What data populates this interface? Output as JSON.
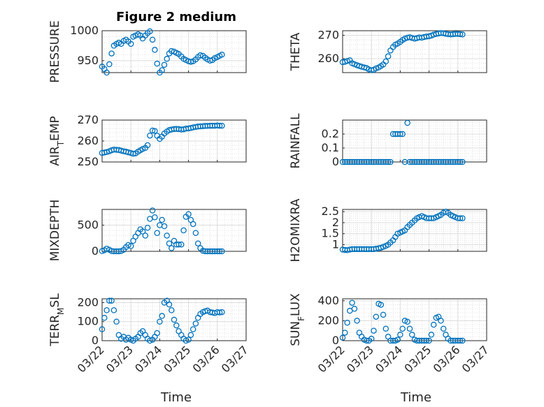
{
  "figure": {
    "title": "Figure 2 medium",
    "xlabel": "Time",
    "marker_color": "#0072BD"
  },
  "chart_data": [
    {
      "type": "scatter",
      "ylabel": "PRESSURE",
      "xlim": [
        "03/22",
        "03/27"
      ],
      "ylim": [
        930,
        1000
      ],
      "yticks": [
        950,
        1000
      ],
      "xticks": [
        "03/22",
        "03/23",
        "03/24",
        "03/25",
        "03/26",
        "03/27"
      ],
      "show_xticklabels": false,
      "grid": true,
      "x": [
        0.0,
        0.08,
        0.16,
        0.25,
        0.33,
        0.41,
        0.5,
        0.58,
        0.66,
        0.75,
        0.83,
        0.91,
        1.0,
        1.08,
        1.16,
        1.25,
        1.33,
        1.41,
        1.5,
        1.58,
        1.66,
        1.75,
        1.83,
        1.91,
        2.0,
        2.08,
        2.16,
        2.25,
        2.33,
        2.41,
        2.5,
        2.58,
        2.66,
        2.75,
        2.83,
        2.91,
        3.0,
        3.08,
        3.16,
        3.25,
        3.33,
        3.41,
        3.5,
        3.58,
        3.66,
        3.75,
        3.83,
        3.91,
        4.0,
        4.08,
        4.16
      ],
      "y": [
        940,
        936,
        930,
        944,
        962,
        975,
        978,
        980,
        978,
        983,
        985,
        982,
        978,
        990,
        992,
        994,
        992,
        987,
        992,
        996,
        999,
        985,
        968,
        945,
        930,
        934,
        943,
        953,
        962,
        966,
        965,
        963,
        961,
        957,
        953,
        951,
        949,
        948,
        949,
        952,
        956,
        959,
        958,
        955,
        952,
        950,
        951,
        954,
        956,
        958,
        960
      ]
    },
    {
      "type": "scatter",
      "ylabel": "THETA",
      "xlim": [
        "03/22",
        "03/27"
      ],
      "ylim": [
        254,
        272
      ],
      "yticks": [
        260,
        270
      ],
      "xticks": [
        "03/22",
        "03/23",
        "03/24",
        "03/25",
        "03/26",
        "03/27"
      ],
      "show_xticklabels": false,
      "grid": true,
      "x": [
        0.0,
        0.08,
        0.16,
        0.25,
        0.33,
        0.41,
        0.5,
        0.58,
        0.66,
        0.75,
        0.83,
        0.91,
        1.0,
        1.08,
        1.16,
        1.25,
        1.33,
        1.41,
        1.5,
        1.58,
        1.66,
        1.75,
        1.83,
        1.91,
        2.0,
        2.08,
        2.16,
        2.25,
        2.33,
        2.41,
        2.5,
        2.58,
        2.66,
        2.75,
        2.83,
        2.91,
        3.0,
        3.08,
        3.16,
        3.25,
        3.33,
        3.41,
        3.5,
        3.58,
        3.66,
        3.75,
        3.83,
        3.91,
        4.0,
        4.08,
        4.16
      ],
      "y": [
        258.5,
        258.6,
        259.0,
        259.3,
        258.0,
        257.6,
        257.2,
        256.8,
        256.5,
        256.2,
        256.0,
        255.4,
        255.0,
        255.2,
        255.8,
        256.2,
        256.8,
        257.5,
        258.8,
        261.0,
        263.5,
        265.0,
        266.0,
        266.5,
        267.2,
        268.0,
        268.6,
        269.0,
        269.2,
        268.9,
        268.6,
        268.8,
        269.1,
        269.0,
        269.3,
        269.5,
        269.6,
        269.9,
        270.3,
        270.6,
        270.8,
        271.0,
        270.9,
        270.7,
        270.5,
        270.4,
        270.5,
        270.6,
        270.6,
        270.5,
        270.4
      ]
    },
    {
      "type": "scatter",
      "ylabel": "AIR_TEMP",
      "xlim": [
        "03/22",
        "03/27"
      ],
      "ylim": [
        250,
        270
      ],
      "yticks": [
        250,
        260,
        270
      ],
      "xticks": [
        "03/22",
        "03/23",
        "03/24",
        "03/25",
        "03/26",
        "03/27"
      ],
      "show_xticklabels": false,
      "grid": true,
      "x": [
        0.0,
        0.08,
        0.16,
        0.25,
        0.33,
        0.41,
        0.5,
        0.58,
        0.66,
        0.75,
        0.83,
        0.91,
        1.0,
        1.08,
        1.16,
        1.25,
        1.33,
        1.41,
        1.5,
        1.58,
        1.66,
        1.75,
        1.83,
        1.91,
        2.0,
        2.08,
        2.16,
        2.25,
        2.33,
        2.41,
        2.5,
        2.58,
        2.66,
        2.75,
        2.83,
        2.91,
        3.0,
        3.08,
        3.16,
        3.25,
        3.33,
        3.41,
        3.5,
        3.58,
        3.66,
        3.75,
        3.83,
        3.91,
        4.0,
        4.08,
        4.16
      ],
      "y": [
        254.3,
        254.5,
        254.7,
        255.1,
        255.6,
        255.9,
        255.8,
        255.7,
        255.4,
        255.1,
        254.9,
        254.6,
        254.3,
        253.9,
        254.1,
        254.9,
        255.6,
        256.2,
        256.7,
        258.0,
        262.6,
        265.0,
        264.8,
        262.5,
        261.0,
        262.1,
        263.6,
        264.5,
        265.2,
        265.5,
        265.7,
        265.8,
        265.7,
        265.5,
        265.6,
        265.9,
        266.0,
        266.2,
        266.5,
        266.7,
        266.9,
        267.0,
        267.1,
        267.2,
        267.2,
        267.3,
        267.3,
        267.3,
        267.4,
        267.3,
        267.3
      ]
    },
    {
      "type": "scatter",
      "ylabel": "RAINFALL",
      "xlim": [
        "03/22",
        "03/27"
      ],
      "ylim": [
        0,
        0.3
      ],
      "yticks": [
        0,
        0.1,
        0.2
      ],
      "xticks": [
        "03/22",
        "03/23",
        "03/24",
        "03/25",
        "03/26",
        "03/27"
      ],
      "show_xticklabels": false,
      "grid": true,
      "x": [
        0.0,
        0.08,
        0.16,
        0.25,
        0.33,
        0.41,
        0.5,
        0.58,
        0.66,
        0.75,
        0.83,
        0.91,
        1.0,
        1.08,
        1.16,
        1.25,
        1.33,
        1.41,
        1.5,
        1.58,
        1.66,
        1.75,
        1.83,
        1.91,
        2.0,
        2.08,
        2.16,
        2.25,
        2.33,
        2.41,
        2.5,
        2.58,
        2.66,
        2.75,
        2.83,
        2.91,
        3.0,
        3.08,
        3.16,
        3.25,
        3.33,
        3.41,
        3.5,
        3.58,
        3.66,
        3.75,
        3.83,
        3.91,
        4.0,
        4.08,
        4.16
      ],
      "y": [
        0,
        0,
        0,
        0,
        0,
        0,
        0,
        0,
        0,
        0,
        0,
        0,
        0,
        0,
        0,
        0,
        0,
        0,
        0,
        0,
        0,
        0.2,
        0.2,
        0.2,
        0.2,
        0.2,
        0,
        0.28,
        0,
        0,
        0,
        0,
        0,
        0,
        0,
        0,
        0,
        0,
        0,
        0,
        0,
        0,
        0,
        0,
        0,
        0,
        0,
        0,
        0,
        0,
        0
      ]
    },
    {
      "type": "scatter",
      "ylabel": "MIXDEPTH",
      "xlim": [
        "03/22",
        "03/27"
      ],
      "ylim": [
        0,
        800
      ],
      "yticks": [
        0,
        500
      ],
      "xticks": [
        "03/22",
        "03/23",
        "03/24",
        "03/25",
        "03/26",
        "03/27"
      ],
      "show_xticklabels": false,
      "grid": true,
      "x": [
        0.0,
        0.08,
        0.16,
        0.25,
        0.33,
        0.41,
        0.5,
        0.58,
        0.66,
        0.75,
        0.83,
        0.91,
        1.0,
        1.08,
        1.16,
        1.25,
        1.33,
        1.41,
        1.5,
        1.58,
        1.66,
        1.75,
        1.83,
        1.91,
        2.0,
        2.08,
        2.16,
        2.25,
        2.33,
        2.41,
        2.5,
        2.58,
        2.66,
        2.75,
        2.83,
        2.91,
        3.0,
        3.08,
        3.16,
        3.25,
        3.33,
        3.41,
        3.5,
        3.58,
        3.66,
        3.75,
        3.83,
        3.91,
        4.0,
        4.08,
        4.16
      ],
      "y": [
        5,
        20,
        50,
        30,
        5,
        0,
        0,
        0,
        5,
        30,
        80,
        120,
        100,
        200,
        280,
        350,
        420,
        380,
        300,
        450,
        620,
        780,
        650,
        350,
        500,
        600,
        480,
        300,
        150,
        60,
        200,
        130,
        130,
        130,
        400,
        660,
        710,
        600,
        520,
        350,
        150,
        60,
        10,
        0,
        0,
        0,
        0,
        0,
        0,
        0,
        0
      ]
    },
    {
      "type": "scatter",
      "ylabel": "H2OMIXRA",
      "xlim": [
        "03/22",
        "03/27"
      ],
      "ylim": [
        0.7,
        2.6
      ],
      "yticks": [
        1,
        1.5,
        2,
        2.5
      ],
      "xticks": [
        "03/22",
        "03/23",
        "03/24",
        "03/25",
        "03/26",
        "03/27"
      ],
      "show_xticklabels": false,
      "grid": true,
      "x": [
        0.0,
        0.08,
        0.16,
        0.25,
        0.33,
        0.41,
        0.5,
        0.58,
        0.66,
        0.75,
        0.83,
        0.91,
        1.0,
        1.08,
        1.16,
        1.25,
        1.33,
        1.41,
        1.5,
        1.58,
        1.66,
        1.75,
        1.83,
        1.91,
        2.0,
        2.08,
        2.16,
        2.25,
        2.33,
        2.41,
        2.5,
        2.58,
        2.66,
        2.75,
        2.83,
        2.91,
        3.0,
        3.08,
        3.16,
        3.25,
        3.33,
        3.41,
        3.5,
        3.58,
        3.66,
        3.75,
        3.83,
        3.91,
        4.0,
        4.08,
        4.16
      ],
      "y": [
        0.78,
        0.76,
        0.75,
        0.78,
        0.8,
        0.8,
        0.8,
        0.8,
        0.8,
        0.8,
        0.8,
        0.8,
        0.8,
        0.8,
        0.82,
        0.84,
        0.86,
        0.9,
        0.95,
        1.0,
        1.1,
        1.2,
        1.35,
        1.5,
        1.55,
        1.6,
        1.65,
        1.8,
        1.9,
        2.0,
        2.1,
        2.2,
        2.25,
        2.3,
        2.25,
        2.2,
        2.2,
        2.2,
        2.2,
        2.25,
        2.3,
        2.35,
        2.45,
        2.5,
        2.45,
        2.35,
        2.3,
        2.25,
        2.2,
        2.2,
        2.2
      ]
    },
    {
      "type": "scatter",
      "ylabel": "TERR_MSL",
      "xlim": [
        "03/22",
        "03/27"
      ],
      "ylim": [
        0,
        220
      ],
      "yticks": [
        0,
        100,
        200
      ],
      "xticks": [
        "03/22",
        "03/23",
        "03/24",
        "03/25",
        "03/26",
        "03/27"
      ],
      "show_xticklabels": true,
      "grid": true,
      "x": [
        0.0,
        0.08,
        0.16,
        0.25,
        0.33,
        0.41,
        0.5,
        0.58,
        0.66,
        0.75,
        0.83,
        0.91,
        1.0,
        1.08,
        1.16,
        1.25,
        1.33,
        1.41,
        1.5,
        1.58,
        1.66,
        1.75,
        1.83,
        1.91,
        2.0,
        2.08,
        2.16,
        2.25,
        2.33,
        2.41,
        2.5,
        2.58,
        2.66,
        2.75,
        2.83,
        2.91,
        3.0,
        3.08,
        3.16,
        3.25,
        3.33,
        3.41,
        3.5,
        3.58,
        3.66,
        3.75,
        3.83,
        3.91,
        4.0,
        4.08,
        4.16
      ],
      "y": [
        60,
        120,
        160,
        210,
        210,
        160,
        100,
        30,
        10,
        20,
        5,
        15,
        5,
        0,
        10,
        20,
        40,
        50,
        30,
        10,
        0,
        5,
        20,
        40,
        100,
        130,
        200,
        210,
        190,
        160,
        110,
        80,
        50,
        30,
        10,
        0,
        5,
        30,
        60,
        90,
        120,
        140,
        150,
        155,
        158,
        150,
        148,
        145,
        150,
        148,
        150
      ]
    },
    {
      "type": "scatter",
      "ylabel": "SUN_FLUX",
      "xlim": [
        "03/22",
        "03/27"
      ],
      "ylim": [
        0,
        420
      ],
      "yticks": [
        0,
        200,
        400
      ],
      "xticks": [
        "03/22",
        "03/23",
        "03/24",
        "03/25",
        "03/26",
        "03/27"
      ],
      "show_xticklabels": true,
      "grid": true,
      "x": [
        0.0,
        0.08,
        0.16,
        0.25,
        0.33,
        0.41,
        0.5,
        0.58,
        0.66,
        0.75,
        0.83,
        0.91,
        1.0,
        1.08,
        1.16,
        1.25,
        1.33,
        1.41,
        1.5,
        1.58,
        1.66,
        1.75,
        1.83,
        1.91,
        2.0,
        2.08,
        2.16,
        2.25,
        2.33,
        2.41,
        2.5,
        2.58,
        2.66,
        2.75,
        2.83,
        2.91,
        3.0,
        3.08,
        3.16,
        3.25,
        3.33,
        3.41,
        3.5,
        3.58,
        3.66,
        3.75,
        3.83,
        3.91,
        4.0,
        4.08,
        4.16
      ],
      "y": [
        30,
        80,
        180,
        300,
        380,
        320,
        200,
        80,
        40,
        10,
        0,
        0,
        20,
        100,
        240,
        370,
        360,
        260,
        120,
        40,
        0,
        0,
        0,
        10,
        60,
        120,
        200,
        190,
        120,
        60,
        10,
        0,
        0,
        0,
        0,
        0,
        0,
        60,
        160,
        230,
        240,
        200,
        120,
        60,
        20,
        0,
        0,
        0,
        0,
        0,
        0
      ]
    }
  ]
}
